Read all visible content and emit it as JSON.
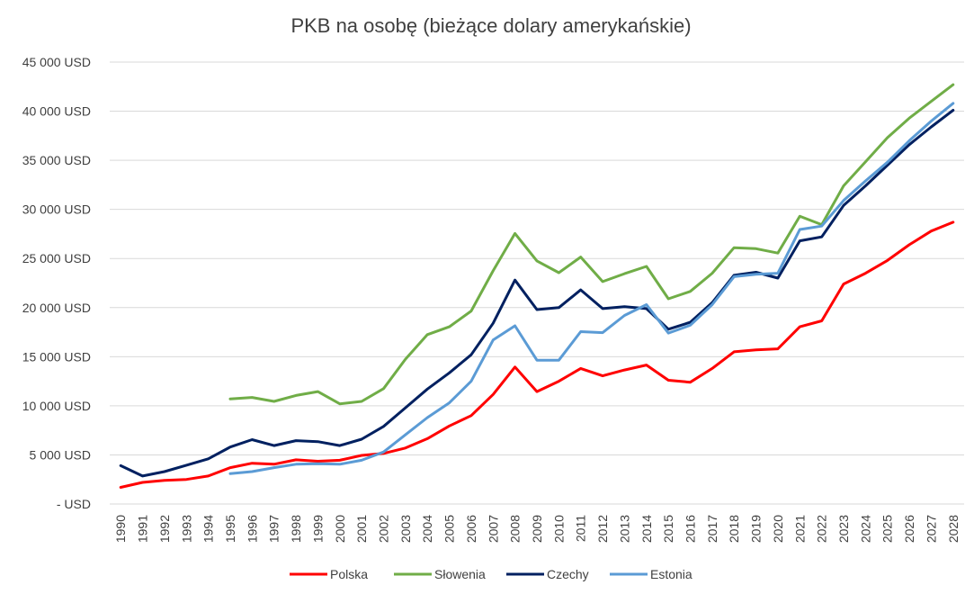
{
  "chart_data": {
    "type": "line",
    "title": "PKB na osobę (bieżące dolary amerykańskie)",
    "xlabel": "",
    "ylabel": "",
    "ylim": [
      0,
      45000
    ],
    "y_ticks": [
      0,
      5000,
      10000,
      15000,
      20000,
      25000,
      30000,
      35000,
      40000,
      45000
    ],
    "y_tick_labels": [
      "- USD",
      "5 000 USD",
      "10 000 USD",
      "15 000 USD",
      "20 000 USD",
      "25 000 USD",
      "30 000 USD",
      "35 000 USD",
      "40 000 USD",
      "45 000 USD"
    ],
    "categories": [
      "1990",
      "1991",
      "1992",
      "1993",
      "1994",
      "1995",
      "1996",
      "1997",
      "1998",
      "1999",
      "2000",
      "2001",
      "2002",
      "2003",
      "2004",
      "2005",
      "2006",
      "2007",
      "2008",
      "2009",
      "2010",
      "2011",
      "2012",
      "2013",
      "2014",
      "2015",
      "2016",
      "2017",
      "2018",
      "2019",
      "2020",
      "2021",
      "2022",
      "2023",
      "2024",
      "2025",
      "2026",
      "2027",
      "2028"
    ],
    "legend_position": "bottom",
    "grid": true,
    "series": [
      {
        "name": "Polska",
        "color": "#ff0000",
        "values": [
          1700,
          2200,
          2400,
          2500,
          2850,
          3700,
          4150,
          4050,
          4500,
          4350,
          4450,
          4950,
          5150,
          5700,
          6650,
          7950,
          9000,
          11150,
          13950,
          11450,
          12500,
          13800,
          13050,
          13650,
          14150,
          12600,
          12400,
          13800,
          15500,
          15700,
          15800,
          18050,
          18650,
          22400,
          23500,
          24800,
          26400,
          27800,
          28700
        ]
      },
      {
        "name": "Słowenia",
        "color": "#70ad47",
        "values": [
          null,
          null,
          null,
          null,
          null,
          10700,
          10850,
          10450,
          11050,
          11450,
          10200,
          10450,
          11750,
          14750,
          17250,
          18050,
          19650,
          23750,
          27550,
          24750,
          23550,
          25150,
          22650,
          23450,
          24200,
          20900,
          21650,
          23500,
          26100,
          26000,
          25550,
          29300,
          28450,
          32400,
          34850,
          37300,
          39300,
          41000,
          42700
        ]
      },
      {
        "name": "Czechy",
        "color": "#002060",
        "values": [
          3900,
          2850,
          3300,
          3950,
          4600,
          5800,
          6550,
          5950,
          6450,
          6350,
          5950,
          6600,
          7900,
          9800,
          11700,
          13350,
          15200,
          18400,
          22800,
          19800,
          20000,
          21800,
          19900,
          20100,
          19900,
          17800,
          18500,
          20500,
          23300,
          23600,
          23000,
          26800,
          27200,
          30400,
          32400,
          34500,
          36600,
          38400,
          40100
        ]
      },
      {
        "name": "Estonia",
        "color": "#5b9bd5",
        "values": [
          null,
          null,
          null,
          null,
          null,
          3100,
          3300,
          3700,
          4050,
          4100,
          4050,
          4450,
          5300,
          7050,
          8800,
          10300,
          12500,
          16700,
          18150,
          14650,
          14650,
          17550,
          17450,
          19200,
          20300,
          17400,
          18200,
          20300,
          23150,
          23400,
          23500,
          27950,
          28300,
          30900,
          32900,
          34800,
          37000,
          39000,
          40800
        ]
      }
    ]
  }
}
